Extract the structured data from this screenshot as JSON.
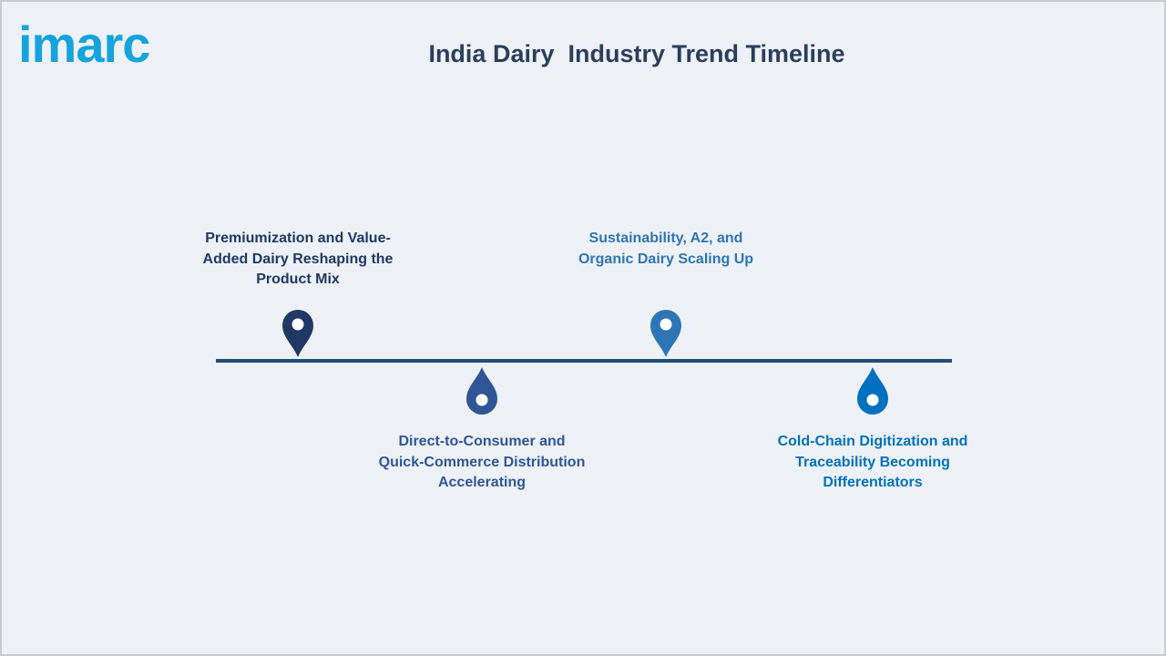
{
  "header": {
    "logo": "imarc",
    "title": "India Dairy  Industry Trend Timeline"
  },
  "timeline": {
    "items": [
      {
        "label": "Premiumization and Value-Added Dairy Reshaping the Product Mix"
      },
      {
        "label": "Direct-to-Consumer and Quick-Commerce Distribution Accelerating"
      },
      {
        "label": "Sustainability, A2, and Organic Dairy Scaling Up"
      },
      {
        "label": "Cold-Chain Digitization and Traceability Becoming Differentiators"
      }
    ]
  }
}
